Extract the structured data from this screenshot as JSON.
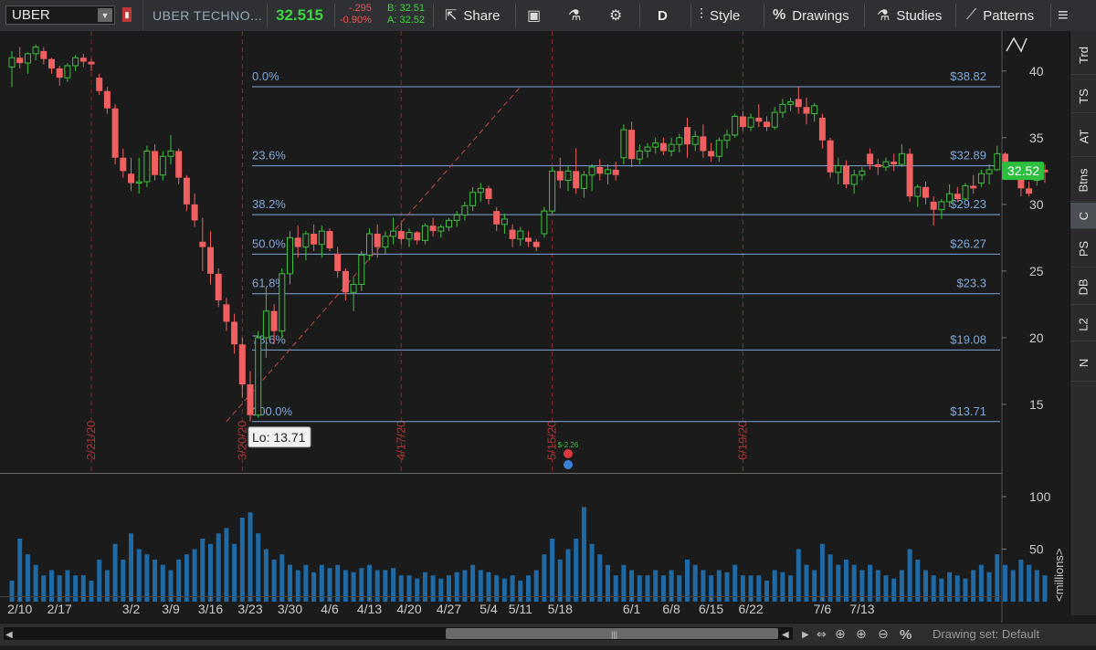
{
  "toolbar": {
    "symbol": "UBER",
    "company": "UBER TECHNO...",
    "last": "32.515",
    "change": "-.295",
    "change_pct": "-0.90%",
    "bid": "B: 32.51",
    "ask": "A: 32.52",
    "share_label": "Share",
    "period_label": "D",
    "style_label": "Style",
    "drawings_label": "Drawings",
    "studies_label": "Studies",
    "patterns_label": "Patterns"
  },
  "right_tabs": [
    "Trd",
    "TS",
    "AT",
    "Btns",
    "C",
    "PS",
    "DB",
    "L2",
    "N"
  ],
  "active_tab": "C",
  "status": {
    "drawing_set": "Drawing set: Default"
  },
  "colors": {
    "up": "#3fbf3f",
    "down": "#f06060",
    "fib": "#7fa8d8",
    "volume": "#1f6aa5",
    "background": "#1b1b1b"
  },
  "chart_data": {
    "type": "candlestick",
    "symbol": "UBER",
    "price_ylim": [
      10,
      43
    ],
    "price_ticks": [
      15,
      20,
      25,
      30,
      35,
      40
    ],
    "volume_ylim": [
      0,
      120
    ],
    "volume_ticks": [
      50,
      100
    ],
    "volume_unit_label": "<millions>",
    "x_ticks": [
      "2/10",
      "2/17",
      "3/2",
      "3/9",
      "3/16",
      "3/23",
      "3/30",
      "4/6",
      "4/13",
      "4/20",
      "4/27",
      "5/4",
      "5/11",
      "5/18",
      "6/1",
      "6/8",
      "6/15",
      "6/22",
      "7/6",
      "7/13"
    ],
    "x_tick_index": [
      1,
      6,
      15,
      20,
      25,
      30,
      35,
      40,
      45,
      50,
      55,
      60,
      64,
      69,
      78,
      83,
      88,
      93,
      102,
      107
    ],
    "date_markers": [
      "2/21/20",
      "3/20/20",
      "4/17/20",
      "5/15/20",
      "6/19/20"
    ],
    "date_marker_index": [
      10,
      29,
      49,
      68,
      92
    ],
    "fibonacci": {
      "high": 38.82,
      "low": 13.71,
      "levels": [
        {
          "label": "0.0%",
          "price": 38.82,
          "value_label": "$38.82"
        },
        {
          "label": "23.6%",
          "price": 32.89,
          "value_label": "$32.89"
        },
        {
          "label": "38.2%",
          "price": 29.23,
          "value_label": "$29.23"
        },
        {
          "label": "50.0%",
          "price": 26.27,
          "value_label": "$26.27"
        },
        {
          "label": "61.8%",
          "price": 23.3,
          "value_label": "$23.3"
        },
        {
          "label": "78.6%",
          "price": 19.08,
          "value_label": "$19.08"
        },
        {
          "label": "100.0%",
          "price": 13.71,
          "value_label": "$13.71"
        }
      ]
    },
    "low_callout": "Lo: 13.71",
    "price_badge": "32.52",
    "event_label": "$-2.26",
    "trendline": {
      "from_index": 27,
      "from_price": 13.71,
      "to_index": 64,
      "to_price": 38.82
    },
    "candles": [
      [
        40.3,
        41.5,
        38.8,
        41.0,
        20
      ],
      [
        41.0,
        41.8,
        40.2,
        40.6,
        60
      ],
      [
        40.6,
        41.4,
        39.8,
        41.3,
        45
      ],
      [
        41.3,
        42.0,
        40.8,
        41.8,
        35
      ],
      [
        41.5,
        41.8,
        40.5,
        40.9,
        25
      ],
      [
        40.9,
        41.0,
        39.8,
        40.2,
        30
      ],
      [
        40.2,
        40.4,
        38.9,
        39.5,
        25
      ],
      [
        39.5,
        40.6,
        39.2,
        40.4,
        30
      ],
      [
        40.4,
        41.2,
        40.0,
        41.0,
        25
      ],
      [
        41.0,
        41.3,
        40.3,
        40.7,
        25
      ],
      [
        40.7,
        40.9,
        40.0,
        40.5,
        20
      ],
      [
        39.5,
        39.8,
        38.2,
        38.5,
        40
      ],
      [
        38.5,
        38.8,
        36.8,
        37.2,
        30
      ],
      [
        37.2,
        37.5,
        33.0,
        33.5,
        55
      ],
      [
        33.5,
        34.2,
        32.0,
        32.5,
        40
      ],
      [
        32.3,
        33.5,
        31.0,
        31.6,
        65
      ],
      [
        31.6,
        33.5,
        30.8,
        31.7,
        50
      ],
      [
        31.7,
        34.4,
        31.3,
        34.0,
        45
      ],
      [
        34.0,
        34.5,
        31.8,
        32.2,
        40
      ],
      [
        32.2,
        34.0,
        31.8,
        33.6,
        35
      ],
      [
        33.6,
        35.2,
        33.0,
        34.0,
        30
      ],
      [
        34.0,
        34.2,
        31.5,
        32.0,
        40
      ],
      [
        32.0,
        32.2,
        29.5,
        30.0,
        45
      ],
      [
        30.0,
        30.8,
        28.3,
        28.8,
        50
      ],
      [
        27.2,
        29.0,
        25.0,
        26.8,
        60
      ],
      [
        26.8,
        28.0,
        24.0,
        24.8,
        55
      ],
      [
        24.8,
        25.2,
        22.3,
        22.8,
        65
      ],
      [
        22.5,
        23.0,
        20.5,
        21.2,
        70
      ],
      [
        21.2,
        21.8,
        18.8,
        19.5,
        55
      ],
      [
        19.5,
        20.0,
        15.5,
        16.5,
        80
      ],
      [
        16.5,
        17.5,
        13.71,
        14.2,
        85
      ],
      [
        14.2,
        20.5,
        14.0,
        20.0,
        65
      ],
      [
        20.0,
        23.8,
        18.5,
        22.0,
        50
      ],
      [
        22.0,
        22.5,
        19.5,
        20.5,
        40
      ],
      [
        20.5,
        25.2,
        20.0,
        24.8,
        45
      ],
      [
        24.8,
        28.0,
        24.0,
        27.5,
        35
      ],
      [
        27.5,
        28.4,
        26.0,
        26.8,
        30
      ],
      [
        26.8,
        28.0,
        25.8,
        27.8,
        35
      ],
      [
        27.8,
        28.5,
        26.5,
        27.0,
        28
      ],
      [
        27.0,
        28.4,
        26.0,
        28.0,
        35
      ],
      [
        28.0,
        28.2,
        26.5,
        26.7,
        32
      ],
      [
        26.3,
        26.8,
        24.5,
        25.0,
        35
      ],
      [
        25.0,
        25.2,
        22.8,
        23.4,
        30
      ],
      [
        23.4,
        24.5,
        22.0,
        24.0,
        28
      ],
      [
        24.0,
        26.5,
        23.5,
        26.2,
        32
      ],
      [
        26.2,
        28.2,
        25.8,
        27.8,
        35
      ],
      [
        27.8,
        28.5,
        26.0,
        26.8,
        30
      ],
      [
        26.8,
        28.0,
        26.3,
        27.6,
        30
      ],
      [
        27.6,
        29.0,
        27.0,
        28.0,
        32
      ],
      [
        28.0,
        28.6,
        27.0,
        27.4,
        25
      ],
      [
        27.4,
        28.2,
        26.8,
        27.9,
        25
      ],
      [
        27.9,
        28.0,
        27.0,
        27.3,
        22
      ],
      [
        27.3,
        28.6,
        27.0,
        28.4,
        28
      ],
      [
        28.4,
        29.0,
        27.6,
        28.0,
        25
      ],
      [
        28.0,
        28.5,
        27.5,
        28.3,
        22
      ],
      [
        28.3,
        29.0,
        28.0,
        28.8,
        25
      ],
      [
        28.8,
        29.5,
        28.3,
        29.2,
        28
      ],
      [
        29.2,
        30.2,
        28.8,
        29.9,
        30
      ],
      [
        29.9,
        31.3,
        29.5,
        30.9,
        35
      ],
      [
        30.9,
        31.6,
        30.2,
        31.2,
        30
      ],
      [
        31.2,
        31.4,
        30.0,
        30.4,
        28
      ],
      [
        29.5,
        29.8,
        28.0,
        28.5,
        25
      ],
      [
        28.5,
        29.3,
        27.8,
        28.9,
        22
      ],
      [
        28.1,
        28.5,
        26.8,
        27.4,
        25
      ],
      [
        27.4,
        28.3,
        26.9,
        28.0,
        20
      ],
      [
        27.5,
        28.0,
        26.8,
        27.2,
        25
      ],
      [
        27.2,
        27.4,
        26.5,
        26.8,
        30
      ],
      [
        27.8,
        29.8,
        27.5,
        29.5,
        45
      ],
      [
        29.5,
        32.8,
        29.3,
        32.5,
        60
      ],
      [
        32.5,
        33.5,
        31.2,
        31.8,
        40
      ],
      [
        31.8,
        32.9,
        31.0,
        32.5,
        50
      ],
      [
        32.5,
        34.2,
        30.8,
        31.2,
        60
      ],
      [
        31.2,
        32.5,
        30.5,
        32.2,
        90
      ],
      [
        32.2,
        33.0,
        31.0,
        32.8,
        55
      ],
      [
        32.8,
        33.4,
        31.8,
        32.3,
        45
      ],
      [
        32.3,
        33.0,
        31.5,
        32.6,
        35
      ],
      [
        32.6,
        33.2,
        31.8,
        32.2,
        25
      ],
      [
        33.5,
        36.0,
        33.0,
        35.6,
        35
      ],
      [
        35.6,
        36.2,
        32.8,
        33.4,
        30
      ],
      [
        33.4,
        34.5,
        33.0,
        34.0,
        25
      ],
      [
        34.0,
        34.6,
        33.5,
        34.3,
        25
      ],
      [
        34.3,
        35.0,
        33.8,
        34.6,
        30
      ],
      [
        34.6,
        35.0,
        33.7,
        34.0,
        25
      ],
      [
        34.0,
        35.0,
        33.6,
        34.5,
        30
      ],
      [
        34.5,
        35.3,
        33.9,
        35.0,
        25
      ],
      [
        35.8,
        36.5,
        33.5,
        34.5,
        40
      ],
      [
        34.5,
        35.5,
        34.0,
        35.1,
        35
      ],
      [
        35.1,
        36.0,
        33.5,
        34.0,
        30
      ],
      [
        34.0,
        34.6,
        33.2,
        33.6,
        25
      ],
      [
        33.6,
        35.0,
        33.2,
        34.8,
        30
      ],
      [
        34.8,
        35.6,
        34.2,
        35.2,
        28
      ],
      [
        35.2,
        36.8,
        35.0,
        36.6,
        35
      ],
      [
        36.6,
        37.0,
        35.5,
        35.8,
        25
      ],
      [
        35.8,
        36.8,
        35.5,
        36.5,
        25
      ],
      [
        36.5,
        37.5,
        35.8,
        36.2,
        25
      ],
      [
        36.2,
        36.6,
        35.5,
        35.8,
        20
      ],
      [
        35.8,
        37.3,
        35.6,
        36.9,
        30
      ],
      [
        36.9,
        37.9,
        36.5,
        37.5,
        28
      ],
      [
        37.5,
        38.0,
        37.0,
        37.7,
        25
      ],
      [
        37.9,
        38.82,
        36.8,
        37.3,
        50
      ],
      [
        37.3,
        38.0,
        36.0,
        36.8,
        35
      ],
      [
        36.8,
        37.6,
        36.2,
        37.4,
        30
      ],
      [
        36.5,
        36.8,
        34.2,
        34.8,
        55
      ],
      [
        34.8,
        35.0,
        32.0,
        32.4,
        45
      ],
      [
        32.4,
        33.5,
        31.5,
        32.9,
        35
      ],
      [
        32.9,
        33.3,
        31.2,
        31.5,
        40
      ],
      [
        31.5,
        32.6,
        30.8,
        32.2,
        35
      ],
      [
        32.2,
        32.8,
        31.8,
        32.5,
        30
      ],
      [
        33.8,
        34.2,
        32.6,
        33.0,
        35
      ],
      [
        33.0,
        33.4,
        32.2,
        32.8,
        30
      ],
      [
        32.8,
        33.5,
        32.5,
        33.2,
        25
      ],
      [
        33.2,
        33.8,
        32.5,
        33.0,
        22
      ],
      [
        33.0,
        34.5,
        32.8,
        33.8,
        30
      ],
      [
        33.8,
        34.2,
        30.2,
        30.6,
        50
      ],
      [
        30.6,
        31.5,
        29.8,
        31.3,
        40
      ],
      [
        31.3,
        31.7,
        30.0,
        30.5,
        30
      ],
      [
        30.2,
        30.6,
        28.4,
        29.6,
        25
      ],
      [
        29.6,
        30.4,
        28.9,
        30.2,
        22
      ],
      [
        30.2,
        31.5,
        29.8,
        30.8,
        28
      ],
      [
        30.8,
        31.3,
        30.2,
        30.4,
        25
      ],
      [
        30.4,
        31.6,
        30.3,
        31.4,
        22
      ],
      [
        31.4,
        32.2,
        30.8,
        31.2,
        30
      ],
      [
        31.6,
        32.6,
        31.3,
        32.3,
        35
      ],
      [
        32.3,
        33.0,
        31.5,
        32.6,
        28
      ],
      [
        32.6,
        34.4,
        32.5,
        33.8,
        45
      ],
      [
        33.8,
        33.9,
        32.6,
        32.9,
        35
      ],
      [
        32.9,
        33.1,
        32.4,
        32.5,
        30
      ],
      [
        32.5,
        33.0,
        30.6,
        31.2,
        40
      ],
      [
        31.2,
        31.7,
        30.6,
        30.8,
        35
      ],
      [
        31.8,
        32.9,
        31.4,
        32.6,
        30
      ],
      [
        32.6,
        33.0,
        31.6,
        32.4,
        25
      ]
    ]
  }
}
